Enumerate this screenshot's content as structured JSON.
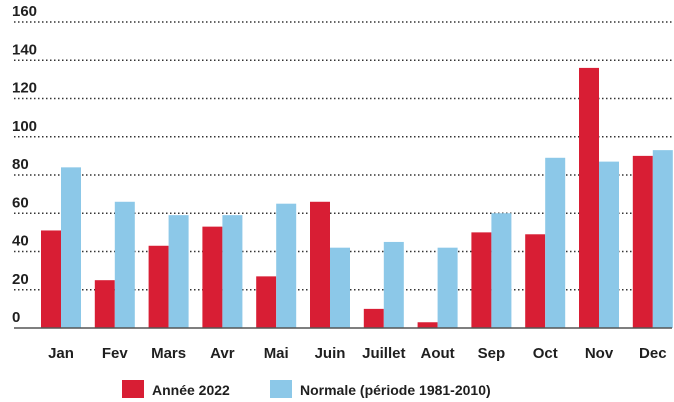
{
  "chart_data": {
    "type": "bar",
    "categories": [
      "Jan",
      "Fev",
      "Mars",
      "Avr",
      "Mai",
      "Juin",
      "Juillet",
      "Aout",
      "Sep",
      "Oct",
      "Nov",
      "Dec"
    ],
    "series": [
      {
        "name": "Année 2022",
        "color": "#d81e34",
        "values": [
          51,
          25,
          43,
          53,
          27,
          66,
          10,
          3,
          50,
          49,
          136,
          90
        ]
      },
      {
        "name": "Normale (période 1981-2010)",
        "color": "#8cc8e8",
        "values": [
          84,
          66,
          59,
          59,
          65,
          42,
          45,
          42,
          60,
          89,
          87,
          93
        ]
      }
    ],
    "yticks": [
      0,
      20,
      40,
      60,
      80,
      100,
      120,
      140,
      160
    ],
    "ylim": [
      0,
      160
    ],
    "grid": "dotted horizontal",
    "legend_position": "bottom-center",
    "title": "",
    "xlabel": "",
    "ylabel": ""
  }
}
